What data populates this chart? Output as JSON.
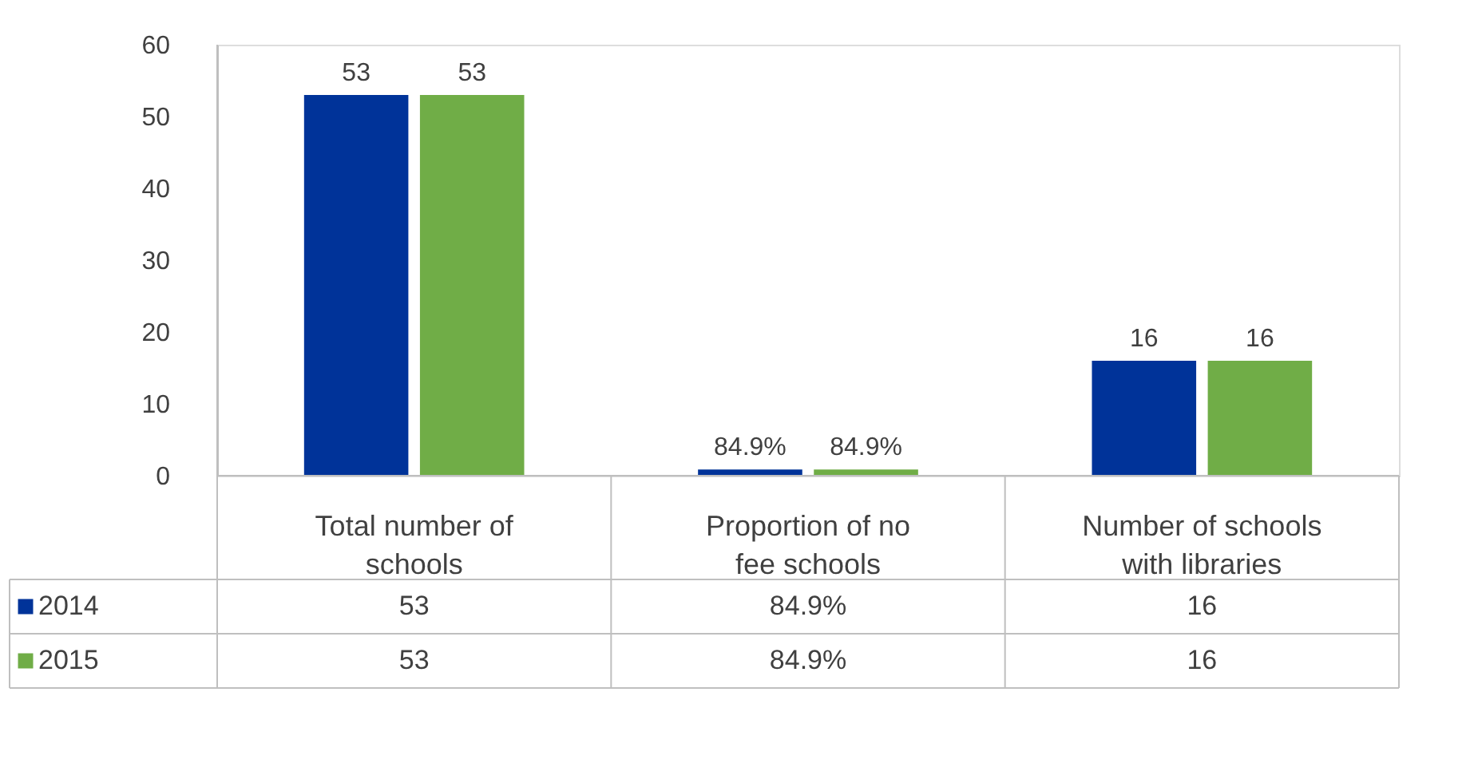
{
  "chart_data": {
    "type": "bar",
    "categories": [
      "Total number of schools",
      "Proportion of no fee schools",
      "Number of schools with libraries"
    ],
    "series": [
      {
        "name": "2014",
        "color": "#003399",
        "values": [
          53,
          0.849,
          16
        ],
        "value_labels": [
          "53",
          "84.9%",
          "16"
        ]
      },
      {
        "name": "2015",
        "color": "#70ad47",
        "values": [
          53,
          0.849,
          16
        ],
        "value_labels": [
          "53",
          "84.9%",
          "16"
        ]
      }
    ],
    "ylim": [
      0,
      60
    ],
    "yticks": [
      0,
      10,
      20,
      30,
      40,
      50,
      60
    ],
    "grid": false,
    "legend": "bottom"
  }
}
